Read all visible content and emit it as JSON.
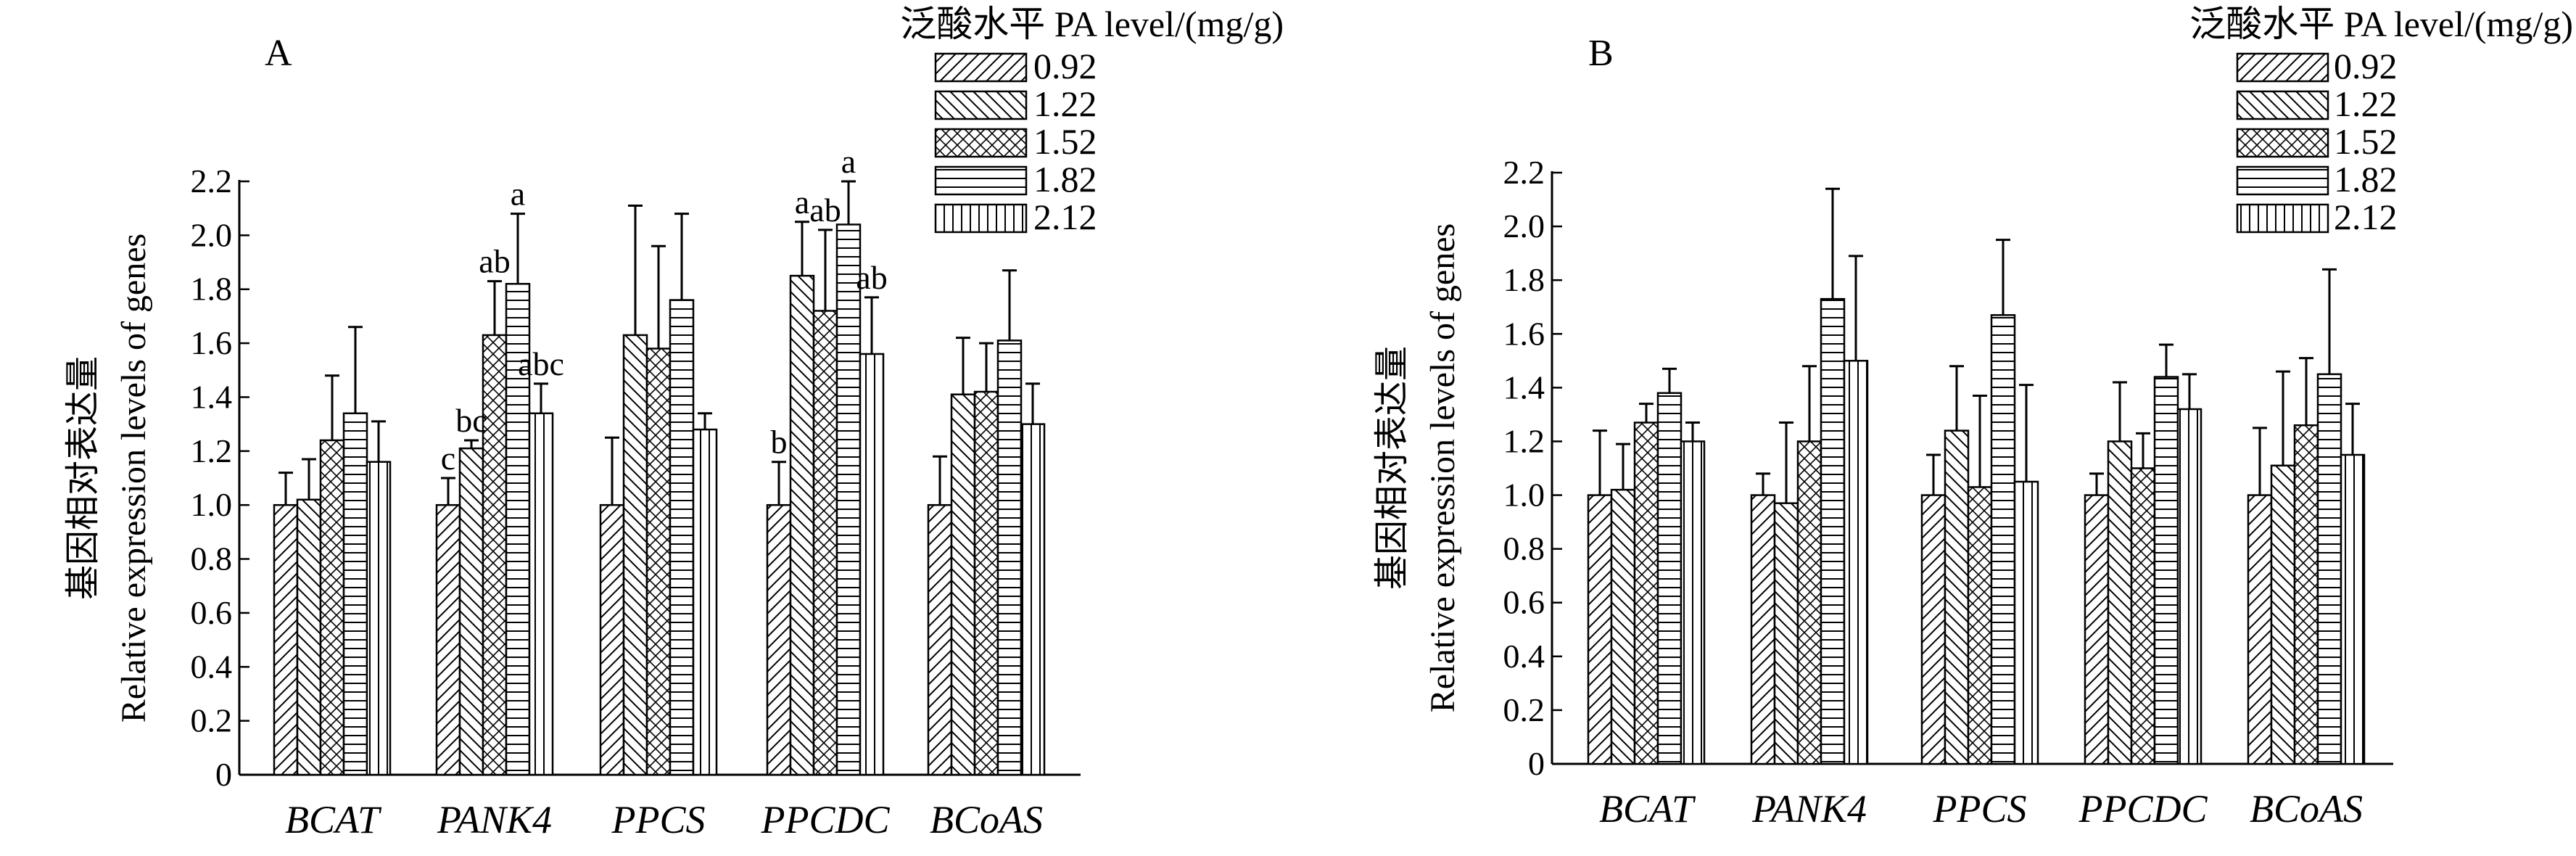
{
  "chart_data": [
    {
      "type": "bar",
      "panel_label": "A",
      "ylabel_cn": "基因相对表达量",
      "ylabel_en": "Relative expression levels of genes",
      "ylim": [
        0,
        2.2
      ],
      "yticks": [
        "0",
        "0.2",
        "0.4",
        "0.6",
        "0.8",
        "1.0",
        "1.2",
        "1.4",
        "1.6",
        "1.8",
        "2.0",
        "2.2"
      ],
      "categories": [
        "BCAT",
        "PANK4",
        "PPCS",
        "PPCDC",
        "BCoAS"
      ],
      "legend_title": "泛酸水平 PA level/(mg/g)",
      "legend_position": "top-right",
      "series": [
        {
          "name": "0.92",
          "pattern": "diag-right",
          "values": [
            1.0,
            1.0,
            1.0,
            1.0,
            1.0
          ],
          "errors": [
            0.12,
            0.1,
            0.25,
            0.16,
            0.18
          ]
        },
        {
          "name": "1.22",
          "pattern": "diag-left",
          "values": [
            1.02,
            1.21,
            1.63,
            1.85,
            1.41
          ],
          "errors": [
            0.15,
            0.03,
            0.48,
            0.2,
            0.21
          ]
        },
        {
          "name": "1.52",
          "pattern": "crosshatch",
          "values": [
            1.24,
            1.63,
            1.58,
            1.72,
            1.42
          ],
          "errors": [
            0.24,
            0.2,
            0.38,
            0.3,
            0.18
          ]
        },
        {
          "name": "1.82",
          "pattern": "horizontal",
          "values": [
            1.34,
            1.82,
            1.76,
            2.04,
            1.61
          ],
          "errors": [
            0.32,
            0.26,
            0.32,
            0.16,
            0.26
          ]
        },
        {
          "name": "2.12",
          "pattern": "vertical",
          "values": [
            1.16,
            1.34,
            1.28,
            1.56,
            1.3
          ],
          "errors": [
            0.15,
            0.11,
            0.06,
            0.21,
            0.15
          ]
        }
      ],
      "annotations": [
        {
          "category": "PANK4",
          "series": "0.92",
          "text": "c"
        },
        {
          "category": "PANK4",
          "series": "1.22",
          "text": "bc"
        },
        {
          "category": "PANK4",
          "series": "1.52",
          "text": "ab"
        },
        {
          "category": "PANK4",
          "series": "1.82",
          "text": "a"
        },
        {
          "category": "PANK4",
          "series": "2.12",
          "text": "abc"
        },
        {
          "category": "PPCDC",
          "series": "0.92",
          "text": "b"
        },
        {
          "category": "PPCDC",
          "series": "1.22",
          "text": "a"
        },
        {
          "category": "PPCDC",
          "series": "1.52",
          "text": "ab"
        },
        {
          "category": "PPCDC",
          "series": "1.82",
          "text": "a"
        },
        {
          "category": "PPCDC",
          "series": "2.12",
          "text": "ab"
        }
      ]
    },
    {
      "type": "bar",
      "panel_label": "B",
      "ylabel_cn": "基因相对表达量",
      "ylabel_en": "Relative expression levels of genes",
      "ylim": [
        0,
        2.2
      ],
      "yticks": [
        "0",
        "0.2",
        "0.4",
        "0.6",
        "0.8",
        "1.0",
        "1.2",
        "1.4",
        "1.6",
        "1.8",
        "2.0",
        "2.2"
      ],
      "categories": [
        "BCAT",
        "PANK4",
        "PPCS",
        "PPCDC",
        "BCoAS"
      ],
      "legend_title": "泛酸水平 PA level/(mg/g)",
      "legend_position": "top-right",
      "series": [
        {
          "name": "0.92",
          "pattern": "diag-right",
          "values": [
            1.0,
            1.0,
            1.0,
            1.0,
            1.0
          ],
          "errors": [
            0.24,
            0.08,
            0.15,
            0.08,
            0.25
          ]
        },
        {
          "name": "1.22",
          "pattern": "diag-left",
          "values": [
            1.02,
            0.97,
            1.24,
            1.2,
            1.11
          ],
          "errors": [
            0.17,
            0.3,
            0.24,
            0.22,
            0.35
          ]
        },
        {
          "name": "1.52",
          "pattern": "crosshatch",
          "values": [
            1.27,
            1.2,
            1.03,
            1.1,
            1.26
          ],
          "errors": [
            0.07,
            0.28,
            0.34,
            0.13,
            0.25
          ]
        },
        {
          "name": "1.82",
          "pattern": "horizontal",
          "values": [
            1.38,
            1.73,
            1.67,
            1.44,
            1.45
          ],
          "errors": [
            0.09,
            0.41,
            0.28,
            0.12,
            0.39
          ]
        },
        {
          "name": "2.12",
          "pattern": "vertical",
          "values": [
            1.2,
            1.5,
            1.05,
            1.32,
            1.15
          ],
          "errors": [
            0.07,
            0.39,
            0.36,
            0.13,
            0.19
          ]
        }
      ],
      "annotations": []
    }
  ]
}
